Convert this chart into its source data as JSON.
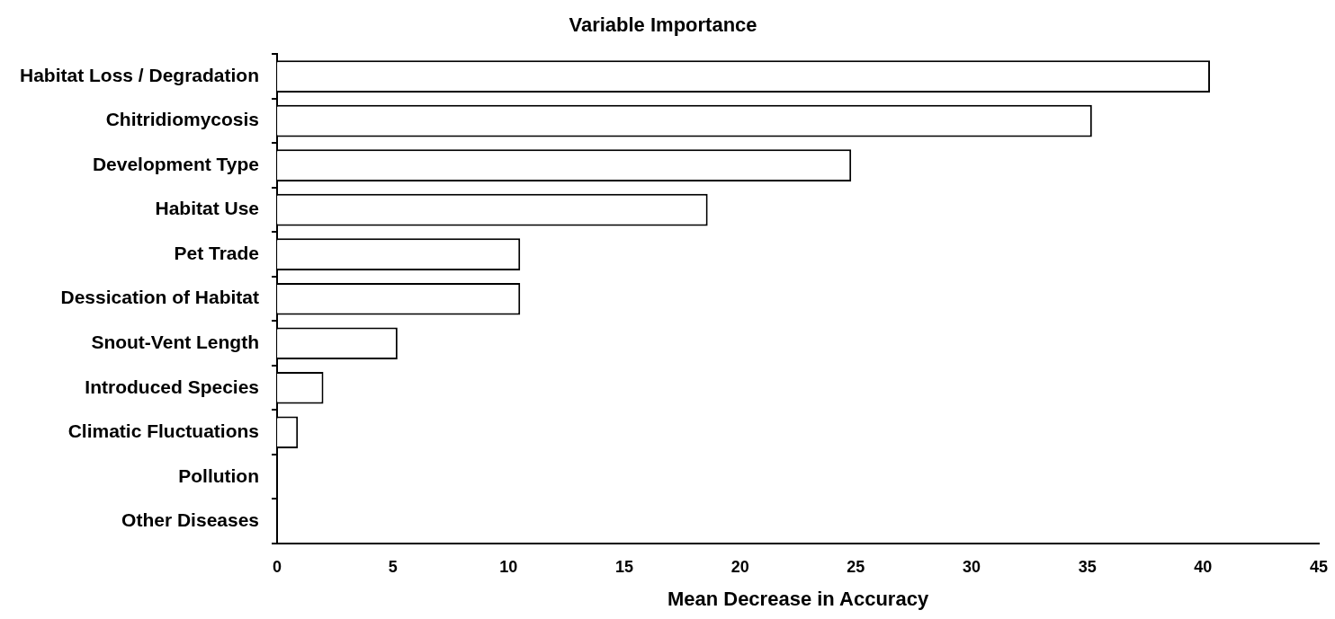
{
  "chart_data": {
    "type": "bar",
    "orientation": "horizontal",
    "title": "Variable Importance",
    "xlabel": "Mean Decrease in Accuracy",
    "categories": [
      "Habitat Loss / Degradation",
      "Chitridiomycosis",
      "Development Type",
      "Habitat Use",
      "Pet Trade",
      "Dessication of Habitat",
      "Snout-Vent Length",
      "Introduced Species",
      "Climatic Fluctuations",
      "Pollution",
      "Other Diseases"
    ],
    "values": [
      40.3,
      35.2,
      24.8,
      18.6,
      10.5,
      10.5,
      5.2,
      2.0,
      0.9,
      0,
      0
    ],
    "color": "#ffffff",
    "xlim": [
      0,
      45
    ],
    "xticks": [
      0,
      5,
      10,
      15,
      20,
      25,
      30,
      35,
      40,
      45
    ],
    "grid": false,
    "legend": false
  }
}
